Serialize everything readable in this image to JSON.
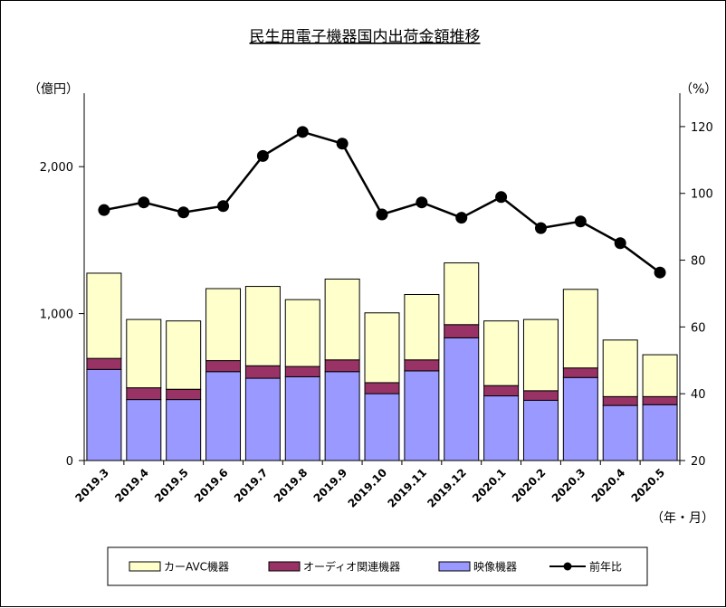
{
  "chart_data": {
    "type": "bar",
    "title": "民生用電子機器国内出荷金額推移",
    "ylabel_left": "（億円）",
    "ylabel_right": "（%）",
    "xlabel": "（年・月）",
    "categories": [
      "2019.3",
      "2019.4",
      "2019.5",
      "2019.6",
      "2019.7",
      "2019.8",
      "2019.9",
      "2019.10",
      "2019.11",
      "2019.12",
      "2020.1",
      "2020.2",
      "2020.3",
      "2020.4",
      "2020.5"
    ],
    "y_left": {
      "min": 0,
      "max": 2500,
      "ticks": [
        0,
        1000,
        2000
      ],
      "tick_labels": [
        "0",
        "1,000",
        "2,000"
      ]
    },
    "y_right": {
      "min": 20,
      "max": 130,
      "ticks": [
        20,
        40,
        60,
        80,
        100,
        120
      ],
      "tick_labels": [
        "20",
        "40",
        "60",
        "80",
        "100",
        "120"
      ]
    },
    "series": [
      {
        "name": "映像機器",
        "kind": "bar",
        "axis": "left",
        "color": "#9999ff",
        "values": [
          620,
          415,
          415,
          605,
          560,
          570,
          605,
          455,
          610,
          835,
          440,
          410,
          565,
          375,
          380
        ]
      },
      {
        "name": "オーディオ関連機器",
        "kind": "bar",
        "axis": "left",
        "color": "#993366",
        "values": [
          75,
          80,
          70,
          75,
          85,
          70,
          80,
          75,
          75,
          90,
          70,
          65,
          65,
          60,
          55
        ]
      },
      {
        "name": "カーAVC機器",
        "kind": "bar",
        "axis": "left",
        "color": "#ffffcc",
        "values": [
          580,
          465,
          465,
          490,
          540,
          455,
          550,
          475,
          445,
          420,
          440,
          485,
          535,
          385,
          285
        ]
      },
      {
        "name": "前年比",
        "kind": "line",
        "axis": "right",
        "color": "#000000",
        "values": [
          95,
          97.3,
          94.3,
          96.2,
          111.2,
          118.4,
          114.9,
          93.7,
          97.3,
          92.7,
          98.9,
          89.6,
          91.6,
          85.1,
          76.3
        ]
      }
    ],
    "legend": {
      "placement": "bottom",
      "items": [
        {
          "label": "カーAVC機器",
          "swatch": "#ffffcc",
          "kind": "bar"
        },
        {
          "label": "オーディオ関連機器",
          "swatch": "#993366",
          "kind": "bar"
        },
        {
          "label": "映像機器",
          "swatch": "#9999ff",
          "kind": "bar"
        },
        {
          "label": "前年比",
          "swatch": "#000000",
          "kind": "line"
        }
      ]
    },
    "grid": false
  }
}
